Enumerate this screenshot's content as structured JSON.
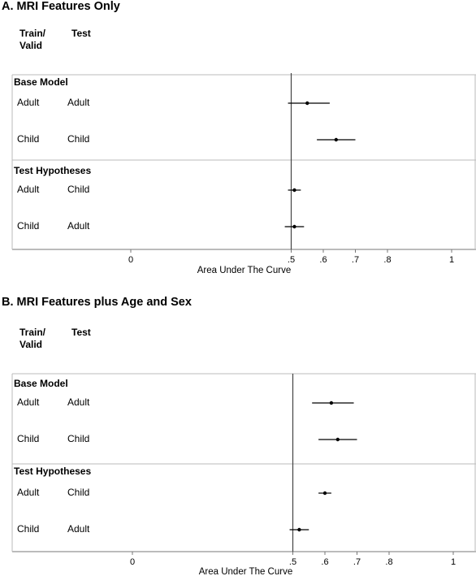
{
  "chart_data": [
    {
      "type": "forest",
      "title": "A. MRI Features Only",
      "column_headers": [
        "Train/\nValid",
        "Test"
      ],
      "xlabel": "Area Under The Curve",
      "xlim": [
        0,
        1
      ],
      "xticks": [
        0,
        0.5,
        0.6,
        0.7,
        0.8,
        1
      ],
      "xtick_labels": [
        "0",
        ".5",
        ".6",
        ".7",
        ".8",
        "1"
      ],
      "reference_line": 0.5,
      "groups": [
        {
          "label": "Base Model",
          "rows": [
            {
              "train": "Adult",
              "test": "Adult",
              "auc": 0.55,
              "ci": [
                0.49,
                0.62
              ]
            },
            {
              "train": "Child",
              "test": "Child",
              "auc": 0.64,
              "ci": [
                0.58,
                0.7
              ]
            }
          ]
        },
        {
          "label": "Test Hypotheses",
          "rows": [
            {
              "train": "Adult",
              "test": "Child",
              "auc": 0.51,
              "ci": [
                0.49,
                0.53
              ]
            },
            {
              "train": "Child",
              "test": "Adult",
              "auc": 0.51,
              "ci": [
                0.48,
                0.54
              ]
            }
          ]
        }
      ]
    },
    {
      "type": "forest",
      "title": "B. MRI Features plus Age and Sex",
      "column_headers": [
        "Train/\nValid",
        "Test"
      ],
      "xlabel": "Area Under The Curve",
      "xlim": [
        0,
        1
      ],
      "xticks": [
        0,
        0.5,
        0.6,
        0.7,
        0.8,
        1
      ],
      "xtick_labels": [
        "0",
        ".5",
        ".6",
        ".7",
        ".8",
        "1"
      ],
      "reference_line": 0.5,
      "groups": [
        {
          "label": "Base Model",
          "rows": [
            {
              "train": "Adult",
              "test": "Adult",
              "auc": 0.62,
              "ci": [
                0.56,
                0.69
              ]
            },
            {
              "train": "Child",
              "test": "Child",
              "auc": 0.64,
              "ci": [
                0.58,
                0.7
              ]
            }
          ]
        },
        {
          "label": "Test Hypotheses",
          "rows": [
            {
              "train": "Adult",
              "test": "Child",
              "auc": 0.6,
              "ci": [
                0.58,
                0.62
              ]
            },
            {
              "train": "Child",
              "test": "Adult",
              "auc": 0.52,
              "ci": [
                0.49,
                0.55
              ]
            }
          ]
        }
      ]
    }
  ]
}
